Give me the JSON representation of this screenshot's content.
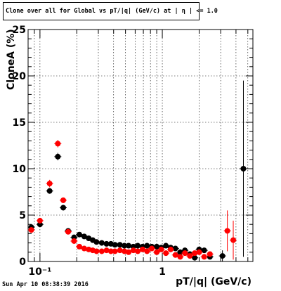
{
  "header": {
    "title": "Clone  over all for Global vs pT/|q| (GeV/c) at | η | <= 1.0"
  },
  "footer": {
    "timestamp": "Sun Apr 10 08:38:39 2016"
  },
  "chart_data": {
    "type": "scatter",
    "title": "Clone  over all for Global vs pT/|q| (GeV/c) at | η | <= 1.0",
    "xlabel": "pT/|q| (GeV/c)",
    "ylabel": "CloneA (%)",
    "x_scale": "log",
    "xlim": [
      0.08,
      5.5
    ],
    "ylim": [
      0,
      25
    ],
    "x_tick_labels": [
      {
        "value": 0.1,
        "label": "10⁻¹"
      },
      {
        "value": 1,
        "label": "1"
      }
    ],
    "y_ticks": [
      0,
      5,
      10,
      15,
      20,
      25
    ],
    "grid": true,
    "legend": "none",
    "series": [
      {
        "color": "#000000",
        "points": [
          {
            "x": 0.085,
            "y": 3.7,
            "yerr": 0.3
          },
          {
            "x": 0.1,
            "y": 4.0,
            "yerr": 0.3
          },
          {
            "x": 0.12,
            "y": 7.6,
            "yerr": 0.3
          },
          {
            "x": 0.14,
            "y": 11.3,
            "yerr": 0.4
          },
          {
            "x": 0.155,
            "y": 5.8,
            "yerr": 0.3
          },
          {
            "x": 0.17,
            "y": 3.3,
            "yerr": 0.2
          },
          {
            "x": 0.19,
            "y": 2.6
          },
          {
            "x": 0.21,
            "y": 2.9
          },
          {
            "x": 0.23,
            "y": 2.7
          },
          {
            "x": 0.25,
            "y": 2.5
          },
          {
            "x": 0.27,
            "y": 2.3
          },
          {
            "x": 0.29,
            "y": 2.1
          },
          {
            "x": 0.32,
            "y": 2.0
          },
          {
            "x": 0.35,
            "y": 1.9
          },
          {
            "x": 0.38,
            "y": 1.9
          },
          {
            "x": 0.41,
            "y": 1.8
          },
          {
            "x": 0.45,
            "y": 1.8
          },
          {
            "x": 0.49,
            "y": 1.7
          },
          {
            "x": 0.53,
            "y": 1.7
          },
          {
            "x": 0.58,
            "y": 1.6
          },
          {
            "x": 0.63,
            "y": 1.7
          },
          {
            "x": 0.69,
            "y": 1.6
          },
          {
            "x": 0.75,
            "y": 1.7
          },
          {
            "x": 0.82,
            "y": 1.6
          },
          {
            "x": 0.9,
            "y": 1.6
          },
          {
            "x": 0.98,
            "y": 1.5
          },
          {
            "x": 1.07,
            "y": 1.7
          },
          {
            "x": 1.17,
            "y": 1.5
          },
          {
            "x": 1.28,
            "y": 1.4
          },
          {
            "x": 1.4,
            "y": 1.0
          },
          {
            "x": 1.53,
            "y": 1.2
          },
          {
            "x": 1.68,
            "y": 0.8
          },
          {
            "x": 1.84,
            "y": 0.4
          },
          {
            "x": 2.0,
            "y": 1.3
          },
          {
            "x": 2.2,
            "y": 1.2
          },
          {
            "x": 2.45,
            "y": 0.5
          },
          {
            "x": 3.1,
            "y": 0.6,
            "yerr": 0.6
          },
          {
            "x": 4.6,
            "y": 10.0,
            "yerr": 9.5
          }
        ]
      },
      {
        "color": "#ff0000",
        "points": [
          {
            "x": 0.085,
            "y": 3.4,
            "yerr": 0.3
          },
          {
            "x": 0.1,
            "y": 4.4,
            "yerr": 0.3
          },
          {
            "x": 0.12,
            "y": 8.4,
            "yerr": 0.4
          },
          {
            "x": 0.14,
            "y": 12.7,
            "yerr": 0.4
          },
          {
            "x": 0.155,
            "y": 6.6,
            "yerr": 0.3
          },
          {
            "x": 0.17,
            "y": 3.2,
            "yerr": 0.2
          },
          {
            "x": 0.19,
            "y": 2.2
          },
          {
            "x": 0.21,
            "y": 1.6
          },
          {
            "x": 0.23,
            "y": 1.4
          },
          {
            "x": 0.25,
            "y": 1.3
          },
          {
            "x": 0.27,
            "y": 1.2
          },
          {
            "x": 0.29,
            "y": 1.1
          },
          {
            "x": 0.32,
            "y": 1.1
          },
          {
            "x": 0.35,
            "y": 1.2
          },
          {
            "x": 0.38,
            "y": 1.1
          },
          {
            "x": 0.41,
            "y": 1.1
          },
          {
            "x": 0.45,
            "y": 1.2
          },
          {
            "x": 0.49,
            "y": 1.1
          },
          {
            "x": 0.53,
            "y": 1.0
          },
          {
            "x": 0.58,
            "y": 1.2
          },
          {
            "x": 0.63,
            "y": 1.1
          },
          {
            "x": 0.69,
            "y": 1.3
          },
          {
            "x": 0.75,
            "y": 1.1
          },
          {
            "x": 0.82,
            "y": 1.4
          },
          {
            "x": 0.9,
            "y": 1.0
          },
          {
            "x": 0.98,
            "y": 1.3
          },
          {
            "x": 1.07,
            "y": 0.9
          },
          {
            "x": 1.17,
            "y": 1.3
          },
          {
            "x": 1.28,
            "y": 0.7
          },
          {
            "x": 1.4,
            "y": 0.5
          },
          {
            "x": 1.53,
            "y": 0.9
          },
          {
            "x": 1.68,
            "y": 0.6
          },
          {
            "x": 1.84,
            "y": 0.9
          },
          {
            "x": 2.0,
            "y": 1.0
          },
          {
            "x": 2.2,
            "y": 0.5
          },
          {
            "x": 2.45,
            "y": 0.8
          },
          {
            "x": 3.4,
            "y": 3.3,
            "yerr": 2.2
          },
          {
            "x": 3.8,
            "y": 2.3,
            "yerr": 2.1
          }
        ]
      }
    ]
  }
}
